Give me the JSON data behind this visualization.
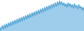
{
  "line_color": "#4a9fd4",
  "fill_color": "#92c8e8",
  "background_color": "#ffffff",
  "figsize": [
    1.2,
    0.45
  ],
  "dpi": 100,
  "y_values": [
    85,
    82,
    87,
    83,
    88,
    84,
    89,
    85,
    90,
    86,
    91,
    87,
    92,
    88,
    93,
    89,
    94,
    90,
    95,
    91,
    96,
    92,
    97,
    93,
    98,
    94,
    99,
    95,
    100,
    96,
    101,
    97,
    102,
    98,
    103,
    99,
    104,
    100,
    105,
    101,
    106,
    102,
    107,
    103,
    108,
    104,
    109,
    105,
    110,
    106,
    111,
    107,
    112,
    108,
    113,
    109,
    114,
    110,
    113,
    109,
    112,
    108,
    111,
    107,
    112,
    108,
    111,
    107,
    110,
    106,
    111,
    107,
    109,
    105,
    110,
    106,
    108,
    104,
    107,
    103
  ],
  "linewidth": 0.7
}
